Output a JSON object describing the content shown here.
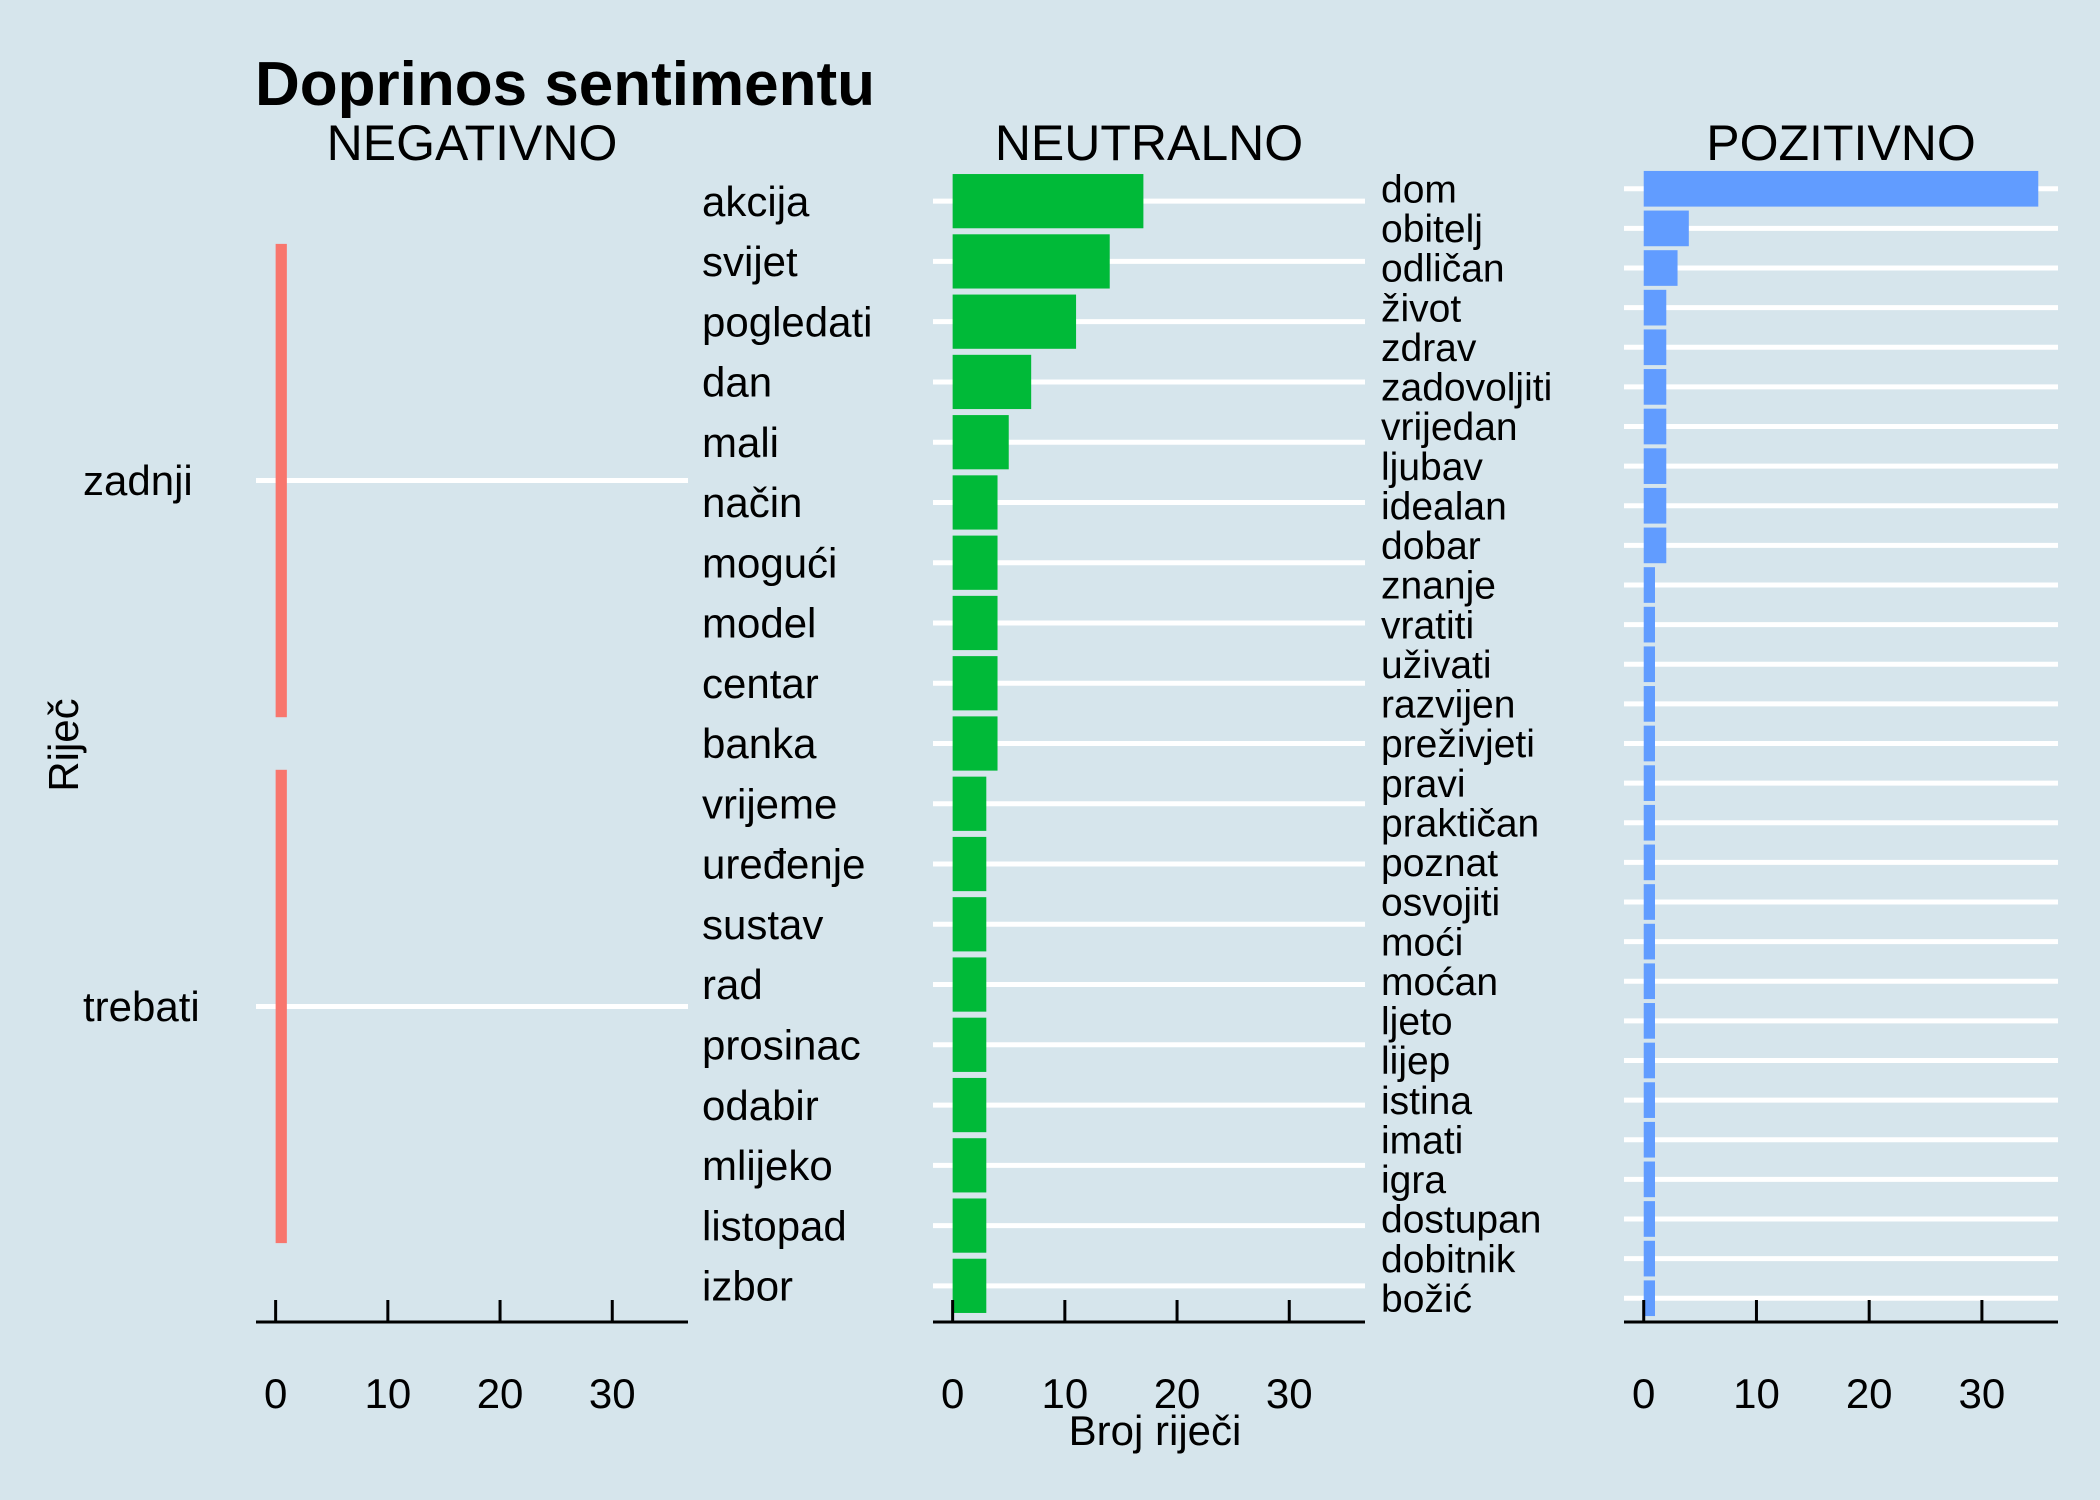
{
  "chart_data": {
    "type": "bar",
    "orientation": "horizontal",
    "title": "Doprinos sentimentu",
    "xlabel": "Broj riječi",
    "ylabel": "Riječ",
    "xlim": [
      0,
      35
    ],
    "x_ticks": [
      0,
      10,
      20,
      30
    ],
    "grid": "major-y-only",
    "legend": "none",
    "panels": [
      {
        "name": "NEGATIVNO",
        "color": "#f8766d",
        "categories": [
          "zadnji",
          "trebati"
        ],
        "values": [
          1,
          1
        ]
      },
      {
        "name": "NEUTRALNO",
        "color": "#00ba38",
        "categories": [
          "akcija",
          "svijet",
          "pogledati",
          "dan",
          "mali",
          "način",
          "mogući",
          "model",
          "centar",
          "banka",
          "vrijeme",
          "uređenje",
          "sustav",
          "rad",
          "prosinac",
          "odabir",
          "mlijeko",
          "listopad",
          "izbor"
        ],
        "values": [
          17,
          14,
          11,
          7,
          5,
          4,
          4,
          4,
          4,
          4,
          3,
          3,
          3,
          3,
          3,
          3,
          3,
          3,
          3
        ]
      },
      {
        "name": "POZITIVNO",
        "color": "#619cff",
        "categories": [
          "dom",
          "obitelj",
          "odličan",
          "život",
          "zdrav",
          "zadovoljiti",
          "vrijedan",
          "ljubav",
          "idealan",
          "dobar",
          "znanje",
          "vratiti",
          "uživati",
          "razvijen",
          "preživjeti",
          "pravi",
          "praktičan",
          "poznat",
          "osvojiti",
          "moći",
          "moćan",
          "ljeto",
          "lijep",
          "istina",
          "imati",
          "igra",
          "dostupan",
          "dobitnik",
          "božić"
        ],
        "values": [
          35,
          4,
          3,
          2,
          2,
          2,
          2,
          2,
          2,
          2,
          1,
          1,
          1,
          1,
          1,
          1,
          1,
          1,
          1,
          1,
          1,
          1,
          1,
          1,
          1,
          1,
          1,
          1,
          1
        ]
      }
    ]
  }
}
